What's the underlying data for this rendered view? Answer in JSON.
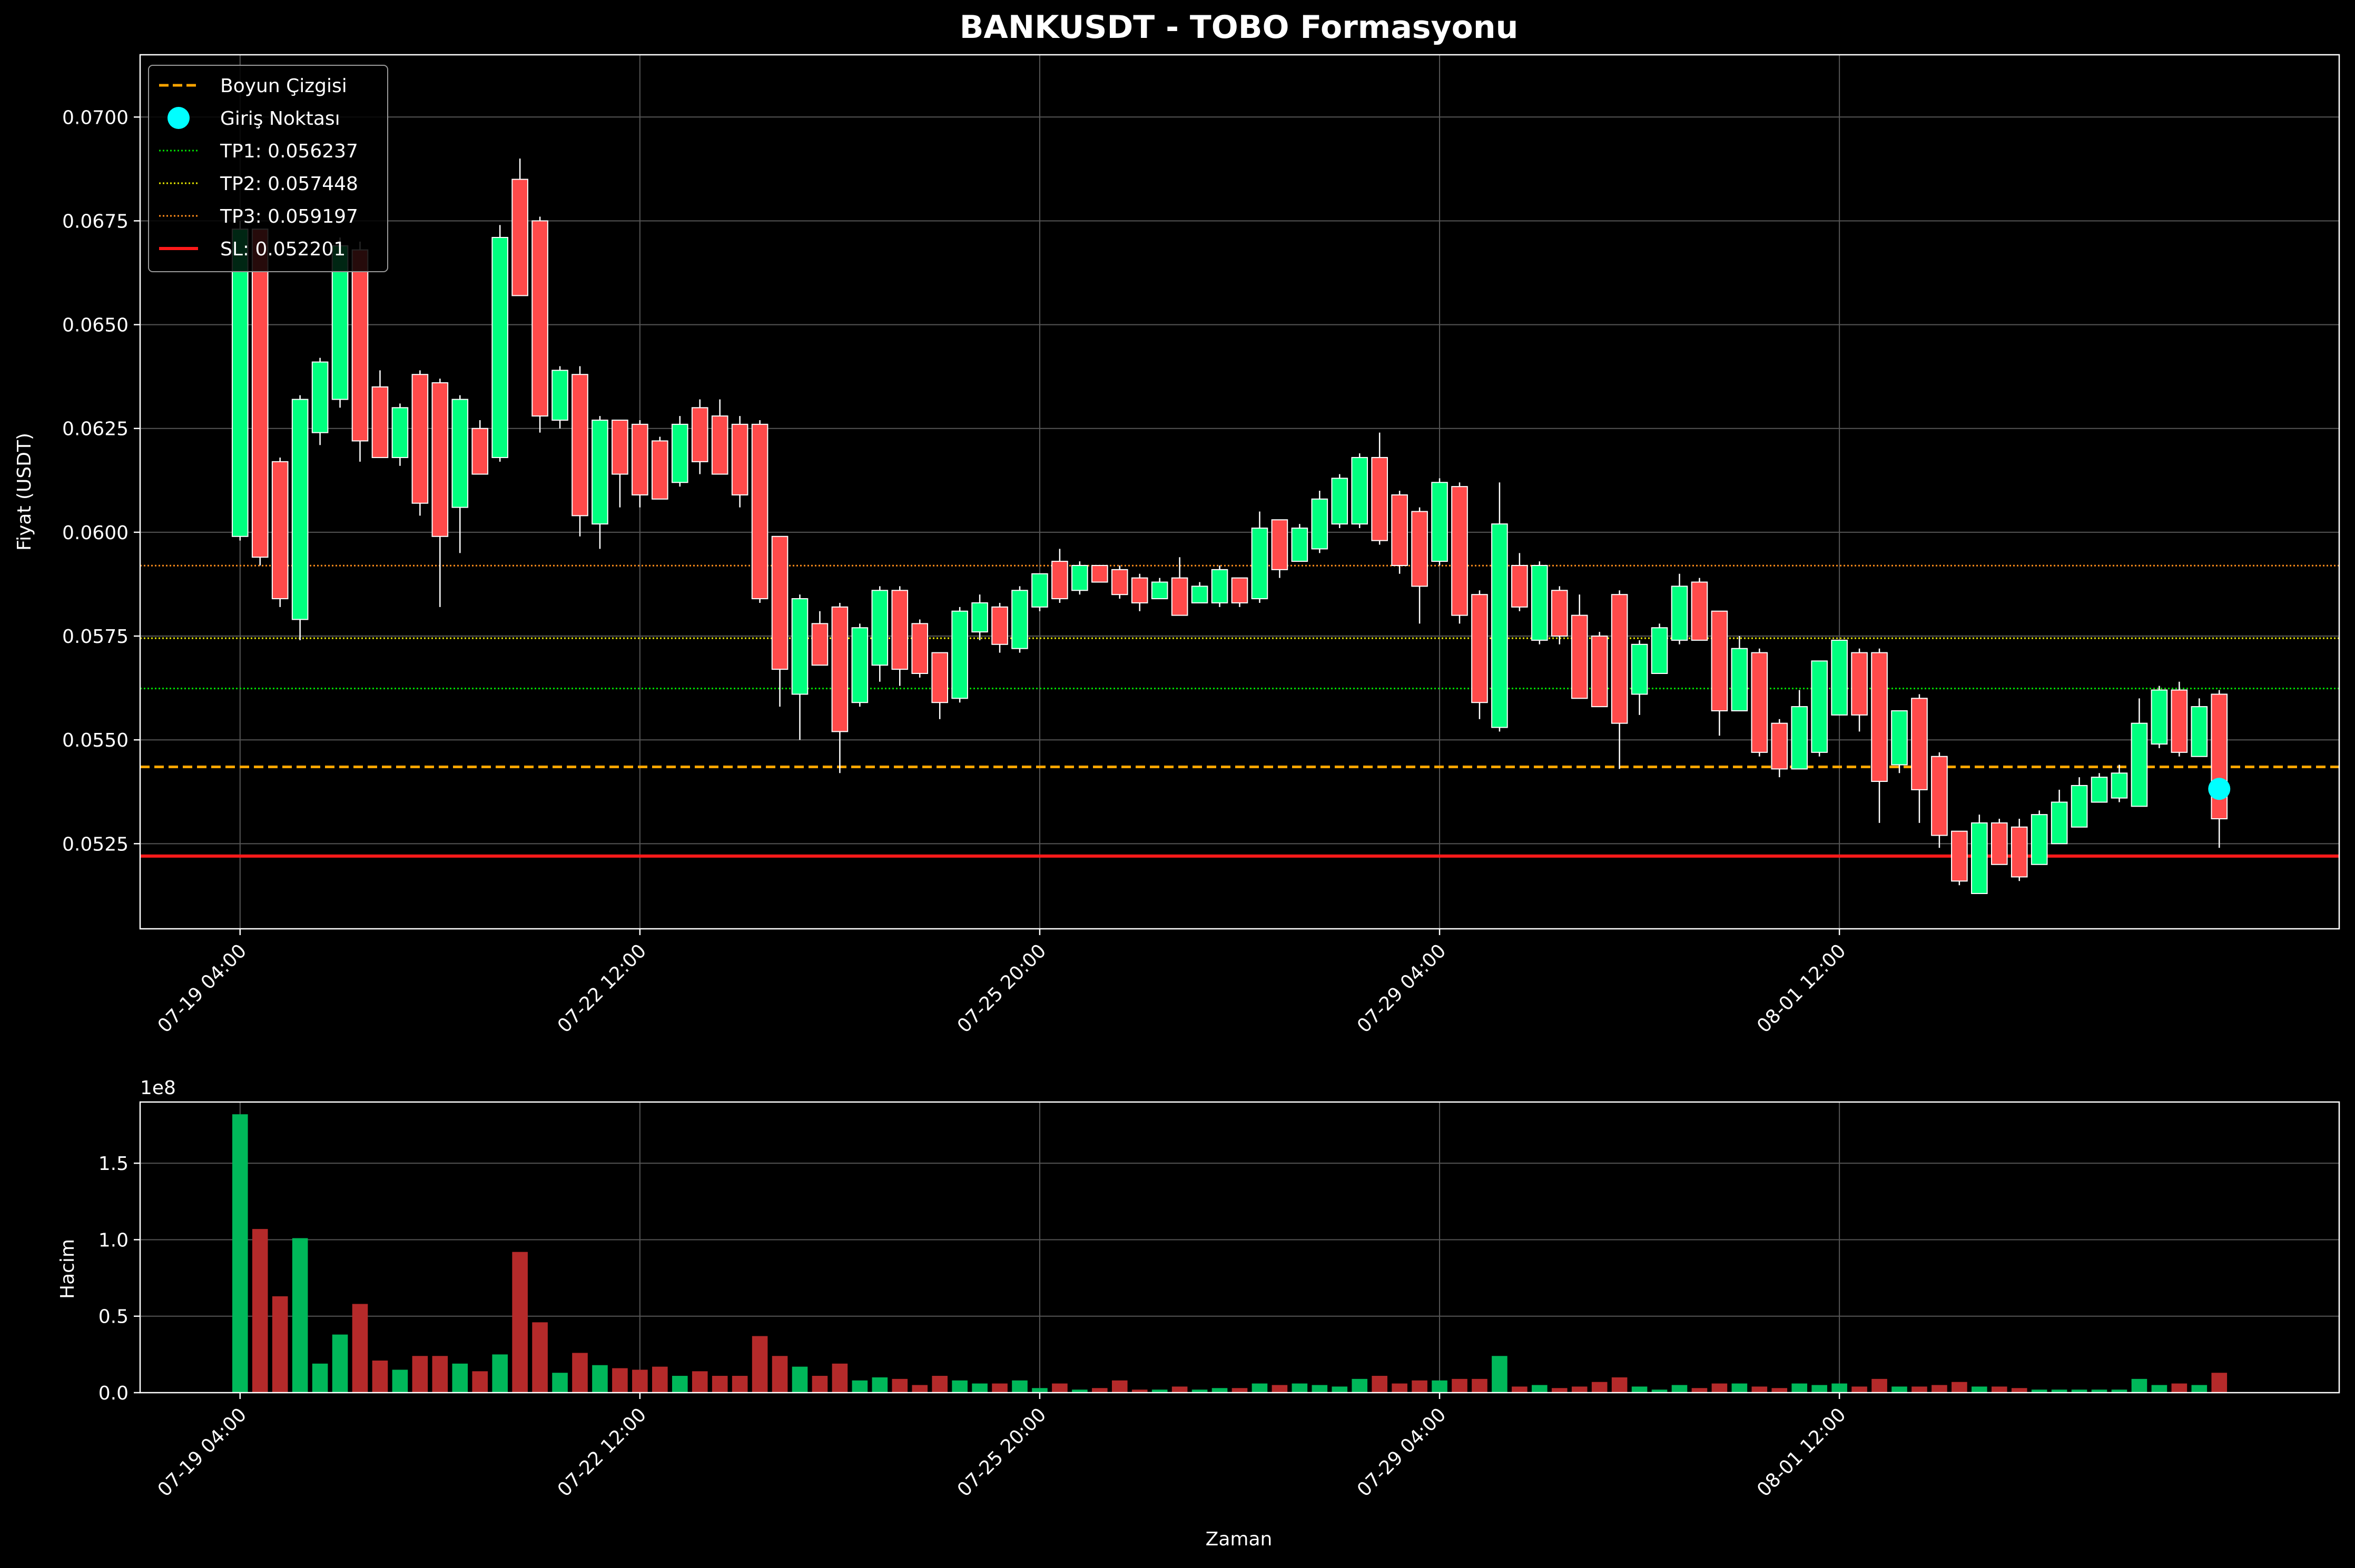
{
  "title": "BANKUSDT - TOBO Formasyonu",
  "colors": {
    "background": "#000000",
    "up": "#00ff7f",
    "down": "#ff4a4a",
    "vol_up": "#00b85a",
    "vol_down": "#b52a2a",
    "neckline": "#ffa500",
    "entry": "#00ffff",
    "tp1": "#00e000",
    "tp2": "#e8e800",
    "tp3": "#ff8c1a",
    "sl": "#ff1a1a",
    "grid": "#555555",
    "text": "#ffffff"
  },
  "chart_data": [
    {
      "type": "candlestick",
      "title": "BANKUSDT - TOBO Formasyonu",
      "ylabel": "Fiyat (USDT)",
      "ylim": [
        0.05045,
        0.0715
      ],
      "yticks": [
        0.0525,
        0.055,
        0.0575,
        0.06,
        0.0625,
        0.065,
        0.0675,
        0.07
      ],
      "ytick_labels": [
        "0.0525",
        "0.0550",
        "0.0575",
        "0.0600",
        "0.0625",
        "0.0650",
        "0.0675",
        "0.0700"
      ],
      "x_index_range": [
        -5,
        105
      ],
      "xticks": [
        0,
        20,
        40,
        60,
        80
      ],
      "xtick_labels": [
        "07-19 04:00",
        "07-22 12:00",
        "07-25 20:00",
        "07-29 04:00",
        "08-01 12:00"
      ],
      "grid": true,
      "candle_interval": "4h",
      "candles": [
        [
          0.0599,
          0.0675,
          0.0598,
          0.0673
        ],
        [
          0.0673,
          0.0673,
          0.0592,
          0.0594
        ],
        [
          0.0617,
          0.0618,
          0.0582,
          0.0584
        ],
        [
          0.0579,
          0.0633,
          0.0574,
          0.0632
        ],
        [
          0.0624,
          0.0642,
          0.0621,
          0.0641
        ],
        [
          0.0632,
          0.0671,
          0.063,
          0.0669
        ],
        [
          0.0668,
          0.067,
          0.0617,
          0.0622
        ],
        [
          0.0635,
          0.0639,
          0.0618,
          0.0618
        ],
        [
          0.0618,
          0.0631,
          0.0616,
          0.063
        ],
        [
          0.0638,
          0.0639,
          0.0604,
          0.0607
        ],
        [
          0.0636,
          0.0637,
          0.0582,
          0.0599
        ],
        [
          0.0606,
          0.0633,
          0.0595,
          0.0632
        ],
        [
          0.0625,
          0.0627,
          0.0614,
          0.0614
        ],
        [
          0.0618,
          0.0674,
          0.0617,
          0.0671
        ],
        [
          0.0685,
          0.069,
          0.0657,
          0.0657
        ],
        [
          0.0675,
          0.0676,
          0.0624,
          0.0628
        ],
        [
          0.0627,
          0.064,
          0.0625,
          0.0639
        ],
        [
          0.0638,
          0.064,
          0.0599,
          0.0604
        ],
        [
          0.0602,
          0.0628,
          0.0596,
          0.0627
        ],
        [
          0.0627,
          0.0627,
          0.0606,
          0.0614
        ],
        [
          0.0626,
          0.0627,
          0.0606,
          0.0609
        ],
        [
          0.0622,
          0.0623,
          0.0608,
          0.0608
        ],
        [
          0.0612,
          0.0628,
          0.0611,
          0.0626
        ],
        [
          0.063,
          0.0632,
          0.0614,
          0.0617
        ],
        [
          0.0628,
          0.0632,
          0.0614,
          0.0614
        ],
        [
          0.0626,
          0.0628,
          0.0606,
          0.0609
        ],
        [
          0.0626,
          0.0627,
          0.0583,
          0.0584
        ],
        [
          0.0599,
          0.0599,
          0.0558,
          0.0567
        ],
        [
          0.0561,
          0.0585,
          0.055,
          0.0584
        ],
        [
          0.0578,
          0.0581,
          0.0568,
          0.0568
        ],
        [
          0.0582,
          0.0583,
          0.0542,
          0.0552
        ],
        [
          0.0559,
          0.0578,
          0.0558,
          0.0577
        ],
        [
          0.0568,
          0.0587,
          0.0564,
          0.0586
        ],
        [
          0.0586,
          0.0587,
          0.0563,
          0.0567
        ],
        [
          0.0578,
          0.0579,
          0.0565,
          0.0566
        ],
        [
          0.0571,
          0.0571,
          0.0555,
          0.0559
        ],
        [
          0.056,
          0.0582,
          0.0559,
          0.0581
        ],
        [
          0.0576,
          0.0585,
          0.0574,
          0.0583
        ],
        [
          0.0582,
          0.0583,
          0.0571,
          0.0573
        ],
        [
          0.0572,
          0.0587,
          0.0571,
          0.0586
        ],
        [
          0.0582,
          0.059,
          0.0581,
          0.059
        ],
        [
          0.0593,
          0.0596,
          0.0583,
          0.0584
        ],
        [
          0.0586,
          0.0593,
          0.0585,
          0.0592
        ],
        [
          0.0592,
          0.0592,
          0.0588,
          0.0588
        ],
        [
          0.0591,
          0.0592,
          0.0584,
          0.0585
        ],
        [
          0.0589,
          0.059,
          0.0581,
          0.0583
        ],
        [
          0.0584,
          0.0589,
          0.0584,
          0.0588
        ],
        [
          0.0589,
          0.0594,
          0.058,
          0.058
        ],
        [
          0.0583,
          0.0588,
          0.0583,
          0.0587
        ],
        [
          0.0583,
          0.0592,
          0.0582,
          0.0591
        ],
        [
          0.0589,
          0.0589,
          0.0582,
          0.0583
        ],
        [
          0.0584,
          0.0605,
          0.0583,
          0.0601
        ],
        [
          0.0603,
          0.0603,
          0.0589,
          0.0591
        ],
        [
          0.0593,
          0.0602,
          0.0593,
          0.0601
        ],
        [
          0.0596,
          0.061,
          0.0595,
          0.0608
        ],
        [
          0.0602,
          0.0614,
          0.0601,
          0.0613
        ],
        [
          0.0602,
          0.0619,
          0.0601,
          0.0618
        ],
        [
          0.0618,
          0.0624,
          0.0597,
          0.0598
        ],
        [
          0.0609,
          0.061,
          0.059,
          0.0592
        ],
        [
          0.0605,
          0.0606,
          0.0578,
          0.0587
        ],
        [
          0.0593,
          0.0613,
          0.0592,
          0.0612
        ],
        [
          0.0611,
          0.0612,
          0.0578,
          0.058
        ],
        [
          0.0585,
          0.0586,
          0.0555,
          0.0559
        ],
        [
          0.0553,
          0.0612,
          0.0552,
          0.0602
        ],
        [
          0.0592,
          0.0595,
          0.0581,
          0.0582
        ],
        [
          0.0574,
          0.0593,
          0.0573,
          0.0592
        ],
        [
          0.0586,
          0.0587,
          0.0573,
          0.0575
        ],
        [
          0.058,
          0.0585,
          0.056,
          0.056
        ],
        [
          0.0575,
          0.0576,
          0.0558,
          0.0558
        ],
        [
          0.0585,
          0.0586,
          0.0543,
          0.0554
        ],
        [
          0.0561,
          0.0574,
          0.0556,
          0.0573
        ],
        [
          0.0566,
          0.0578,
          0.0566,
          0.0577
        ],
        [
          0.0574,
          0.059,
          0.0573,
          0.0587
        ],
        [
          0.0588,
          0.0589,
          0.0574,
          0.0574
        ],
        [
          0.0581,
          0.0581,
          0.0551,
          0.0557
        ],
        [
          0.0557,
          0.0575,
          0.0557,
          0.0572
        ],
        [
          0.0571,
          0.0572,
          0.0546,
          0.0547
        ],
        [
          0.0554,
          0.0555,
          0.0541,
          0.0543
        ],
        [
          0.0543,
          0.0562,
          0.0543,
          0.0558
        ],
        [
          0.0547,
          0.0569,
          0.0546,
          0.0569
        ],
        [
          0.0556,
          0.0574,
          0.0556,
          0.0574
        ],
        [
          0.0571,
          0.0572,
          0.0552,
          0.0556
        ],
        [
          0.0571,
          0.0572,
          0.053,
          0.054
        ],
        [
          0.0544,
          0.0557,
          0.0542,
          0.0557
        ],
        [
          0.056,
          0.0561,
          0.053,
          0.0538
        ],
        [
          0.0546,
          0.0547,
          0.0524,
          0.0527
        ],
        [
          0.0528,
          0.0528,
          0.0515,
          0.0516
        ],
        [
          0.0513,
          0.0532,
          0.0513,
          0.053
        ],
        [
          0.053,
          0.0531,
          0.052,
          0.052
        ],
        [
          0.0529,
          0.0531,
          0.0516,
          0.0517
        ],
        [
          0.052,
          0.0533,
          0.052,
          0.0532
        ],
        [
          0.0525,
          0.0538,
          0.0525,
          0.0535
        ],
        [
          0.0529,
          0.0541,
          0.0529,
          0.0539
        ],
        [
          0.0535,
          0.0542,
          0.0535,
          0.0541
        ],
        [
          0.0536,
          0.0544,
          0.0535,
          0.0542
        ],
        [
          0.0534,
          0.056,
          0.0534,
          0.0554
        ],
        [
          0.0549,
          0.0563,
          0.0548,
          0.0562
        ],
        [
          0.0562,
          0.0564,
          0.0546,
          0.0547
        ],
        [
          0.0546,
          0.056,
          0.0546,
          0.0558
        ],
        [
          0.0561,
          0.0562,
          0.0524,
          0.0531
        ]
      ],
      "lines": [
        {
          "label": "Boyun Çizgisi",
          "value": 0.05435,
          "style": "dashed",
          "color_key": "neckline"
        },
        {
          "label": "TP1: 0.056237",
          "value": 0.056237,
          "style": "dotted",
          "color_key": "tp1"
        },
        {
          "label": "TP2: 0.057448",
          "value": 0.057448,
          "style": "dotted",
          "color_key": "tp2"
        },
        {
          "label": "TP3: 0.059197",
          "value": 0.059197,
          "style": "dotted",
          "color_key": "tp3"
        },
        {
          "label": "SL: 0.052201",
          "value": 0.052201,
          "style": "solid",
          "color_key": "sl"
        }
      ],
      "entry": {
        "label": "Giriş Noktası",
        "index": 99,
        "value": 0.05382
      },
      "legend": {
        "placement": "top-left",
        "entries": [
          "Boyun Çizgisi",
          "Giriş Noktası",
          "TP1: 0.056237",
          "TP2: 0.057448",
          "TP3: 0.059197",
          "SL: 0.052201"
        ]
      }
    },
    {
      "type": "bar",
      "ylabel": "Hacim",
      "xlabel": "Zaman",
      "y_offset_label": "1e8",
      "ylim": [
        0,
        1.9
      ],
      "yticks": [
        0,
        0.5,
        1.0,
        1.5
      ],
      "ytick_labels": [
        "0.0",
        "0.5",
        "1.0",
        "1.5"
      ],
      "xticks": [
        0,
        20,
        40,
        60,
        80
      ],
      "xtick_labels": [
        "07-19 04:00",
        "07-22 12:00",
        "07-25 20:00",
        "07-29 04:00",
        "08-01 12:00"
      ],
      "grid": true,
      "unit_multiplier": 100000000,
      "values": [
        1.82,
        1.07,
        0.63,
        1.01,
        0.19,
        0.38,
        0.58,
        0.21,
        0.15,
        0.24,
        0.24,
        0.19,
        0.14,
        0.25,
        0.92,
        0.46,
        0.13,
        0.26,
        0.18,
        0.16,
        0.15,
        0.17,
        0.11,
        0.14,
        0.11,
        0.11,
        0.37,
        0.24,
        0.17,
        0.11,
        0.19,
        0.08,
        0.1,
        0.09,
        0.05,
        0.11,
        0.08,
        0.06,
        0.06,
        0.08,
        0.03,
        0.06,
        0.02,
        0.03,
        0.08,
        0.02,
        0.02,
        0.04,
        0.02,
        0.03,
        0.03,
        0.06,
        0.05,
        0.06,
        0.05,
        0.04,
        0.09,
        0.11,
        0.06,
        0.08,
        0.08,
        0.09,
        0.09,
        0.24,
        0.04,
        0.05,
        0.03,
        0.04,
        0.07,
        0.1,
        0.04,
        0.02,
        0.05,
        0.03,
        0.06,
        0.06,
        0.04,
        0.03,
        0.06,
        0.05,
        0.06,
        0.04,
        0.09,
        0.04,
        0.04,
        0.05,
        0.07,
        0.04,
        0.04,
        0.03,
        0.02,
        0.02,
        0.02,
        0.02,
        0.02,
        0.09,
        0.05,
        0.06,
        0.05,
        0.13
      ]
    }
  ]
}
